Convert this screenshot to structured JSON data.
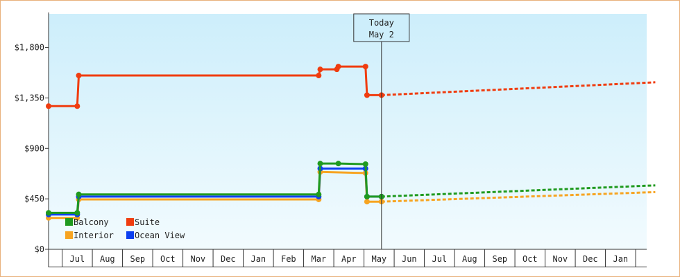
{
  "chart_data": {
    "type": "line",
    "title": "",
    "xlabel": "",
    "ylabel": "",
    "ylim": [
      0,
      2100
    ],
    "y_ticks": [
      {
        "value": 0,
        "label": "$0"
      },
      {
        "value": 450,
        "label": "$450"
      },
      {
        "value": 900,
        "label": "$900"
      },
      {
        "value": 1350,
        "label": "$1,350"
      },
      {
        "value": 1800,
        "label": "$1,800"
      }
    ],
    "x_ticks": [
      "Jul",
      "Aug",
      "Sep",
      "Oct",
      "Nov",
      "Dec",
      "Jan",
      "Feb",
      "Mar",
      "Apr",
      "May",
      "Jun",
      "Jul",
      "Aug",
      "Sep",
      "Oct",
      "Nov",
      "Dec",
      "Jan"
    ],
    "x_axis_note": "x values are months since June 1 of the first year",
    "today_marker": {
      "line1": "Today",
      "line2": "May 2",
      "x": 11.03
    },
    "grid": false,
    "background": "light-blue gradient",
    "legend_position": "bottom-left",
    "series": [
      {
        "name": "Suite",
        "color": "#f03c0f",
        "points": [
          [
            0,
            1277
          ],
          [
            0.95,
            1277
          ],
          [
            1.0,
            1550
          ],
          [
            8.95,
            1550
          ],
          [
            9.0,
            1605
          ],
          [
            9.55,
            1605
          ],
          [
            9.6,
            1630
          ],
          [
            10.5,
            1630
          ],
          [
            10.55,
            1375
          ],
          [
            11.03,
            1375
          ]
        ],
        "forecast": [
          [
            11.03,
            1375
          ],
          [
            20.1,
            1490
          ]
        ]
      },
      {
        "name": "Balcony",
        "color": "#1f9a1f",
        "points": [
          [
            0,
            325
          ],
          [
            0.95,
            325
          ],
          [
            1.0,
            490
          ],
          [
            8.95,
            490
          ],
          [
            9.0,
            765
          ],
          [
            9.6,
            765
          ],
          [
            10.5,
            760
          ],
          [
            10.55,
            470
          ],
          [
            11.03,
            470
          ]
        ],
        "forecast": [
          [
            11.03,
            470
          ],
          [
            20.1,
            570
          ]
        ]
      },
      {
        "name": "Ocean View",
        "color": "#0d3ff0",
        "points": [
          [
            0,
            310
          ],
          [
            0.95,
            310
          ],
          [
            1.0,
            470
          ],
          [
            8.95,
            470
          ],
          [
            9.0,
            720
          ],
          [
            10.5,
            720
          ],
          [
            10.55,
            470
          ],
          [
            11.03,
            470
          ]
        ],
        "forecast": []
      },
      {
        "name": "Interior",
        "color": "#f7a421",
        "points": [
          [
            0,
            280
          ],
          [
            0.95,
            280
          ],
          [
            1.0,
            445
          ],
          [
            8.95,
            445
          ],
          [
            9.0,
            690
          ],
          [
            10.5,
            680
          ],
          [
            10.55,
            425
          ],
          [
            11.03,
            425
          ]
        ],
        "forecast": [
          [
            11.03,
            425
          ],
          [
            20.1,
            510
          ]
        ]
      }
    ],
    "legend": [
      {
        "name": "Balcony",
        "color": "#1f9a1f"
      },
      {
        "name": "Suite",
        "color": "#f03c0f"
      },
      {
        "name": "Interior",
        "color": "#f7a421"
      },
      {
        "name": "Ocean View",
        "color": "#0d3ff0"
      }
    ]
  }
}
